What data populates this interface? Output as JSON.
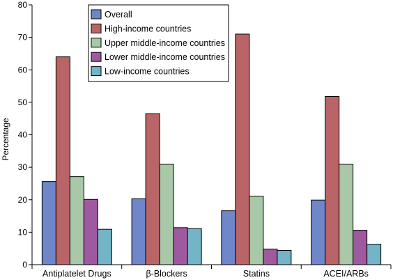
{
  "chart_data": {
    "type": "bar",
    "title": "",
    "xlabel": "",
    "ylabel": "Percentage",
    "ylim": [
      0,
      80
    ],
    "yticks": [
      0,
      10,
      20,
      30,
      40,
      50,
      60,
      70,
      80
    ],
    "grid": false,
    "legend_position": "top-center",
    "categories": [
      "Antiplatelet Drugs",
      "β-Blockers",
      "Statins",
      "ACEI/ARBs"
    ],
    "series": [
      {
        "name": "Overall",
        "color": "#6f86c9",
        "values": [
          25.6,
          20.3,
          16.6,
          19.9
        ]
      },
      {
        "name": "High-income countries",
        "color": "#b96467",
        "values": [
          64.0,
          46.5,
          71.0,
          51.8
        ]
      },
      {
        "name": "Upper middle-income countries",
        "color": "#a8c8a8",
        "values": [
          27.1,
          30.9,
          21.1,
          30.9
        ]
      },
      {
        "name": "Lower middle-income countries",
        "color": "#9f5a9f",
        "values": [
          20.1,
          11.4,
          4.8,
          10.6
        ]
      },
      {
        "name": "Low-income countries",
        "color": "#73b4c6",
        "values": [
          10.9,
          11.1,
          4.4,
          6.3
        ]
      }
    ]
  }
}
